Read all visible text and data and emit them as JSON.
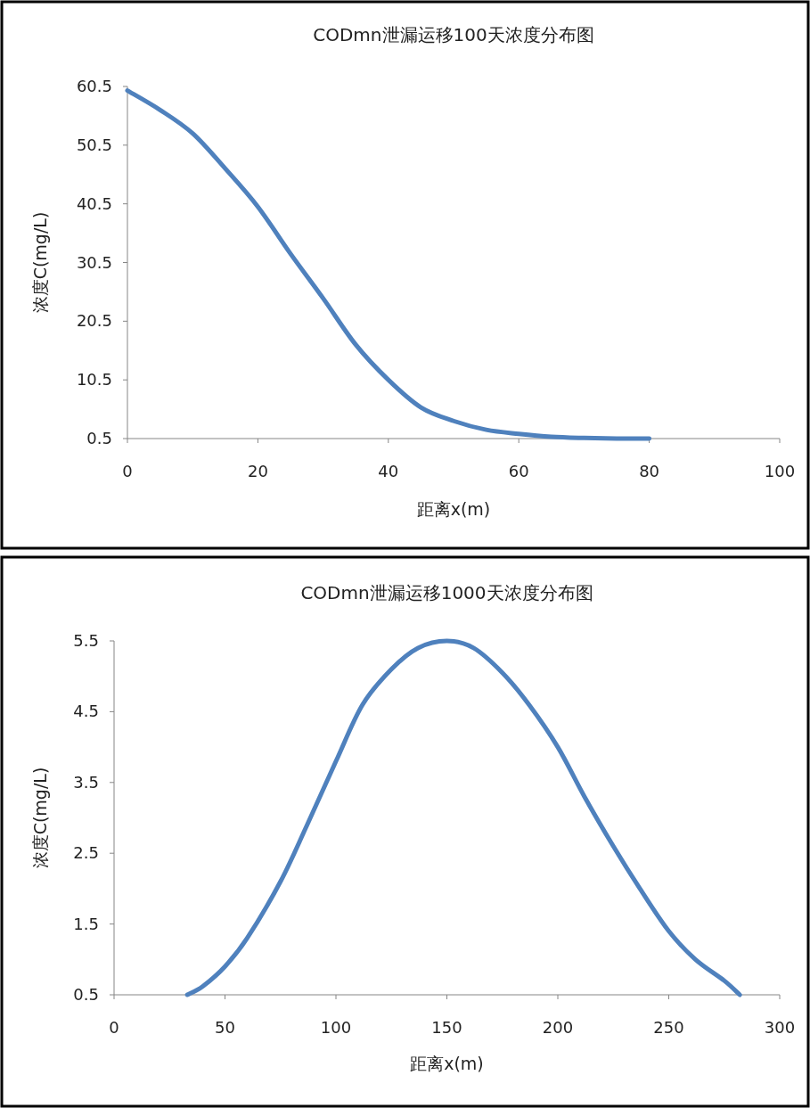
{
  "chart_data": [
    {
      "type": "line",
      "title": "CODmn泄漏运移100天浓度分布图",
      "xlabel": "距离x(m)",
      "ylabel": "浓度C(mg/L)",
      "xlim": [
        0,
        100
      ],
      "ylim": [
        0.5,
        60.5
      ],
      "xticks": [
        0,
        20,
        40,
        60,
        80,
        100
      ],
      "yticks": [
        0.5,
        10.5,
        20.5,
        30.5,
        40.5,
        50.5,
        60.5
      ],
      "grid": false,
      "marker": "none",
      "line_style": "solid",
      "series": [
        {
          "color": "#4f81bd",
          "x": [
            0,
            5,
            10,
            15,
            20,
            25,
            30,
            35,
            40,
            45,
            50,
            55,
            60,
            65,
            70,
            75,
            80
          ],
          "values": [
            59.8,
            56.5,
            52.5,
            46.5,
            40,
            32,
            24.4,
            16.5,
            10.5,
            5.8,
            3.5,
            2,
            1.3,
            0.8,
            0.6,
            0.5,
            0.5
          ]
        }
      ]
    },
    {
      "type": "line",
      "title": "CODmn泄漏运移1000天浓度分布图",
      "xlabel": "距离x(m)",
      "ylabel": "浓度C(mg/L)",
      "xlim": [
        0,
        300
      ],
      "ylim": [
        0.5,
        5.5
      ],
      "xticks": [
        0,
        50,
        100,
        150,
        200,
        250,
        300
      ],
      "yticks": [
        0.5,
        1.5,
        2.5,
        3.5,
        4.5,
        5.5
      ],
      "grid": false,
      "marker": "none",
      "line_style": "solid",
      "series": [
        {
          "color": "#4f81bd",
          "x": [
            33,
            40,
            50,
            60,
            75,
            87,
            100,
            112,
            125,
            137,
            150,
            162,
            175,
            187,
            200,
            212,
            225,
            237,
            250,
            262,
            275,
            282
          ],
          "values": [
            0.5,
            0.62,
            0.9,
            1.3,
            2.1,
            2.9,
            3.8,
            4.6,
            5.1,
            5.4,
            5.5,
            5.4,
            5.05,
            4.6,
            4.0,
            3.3,
            2.6,
            2.0,
            1.4,
            1.0,
            0.7,
            0.5
          ]
        }
      ]
    }
  ]
}
